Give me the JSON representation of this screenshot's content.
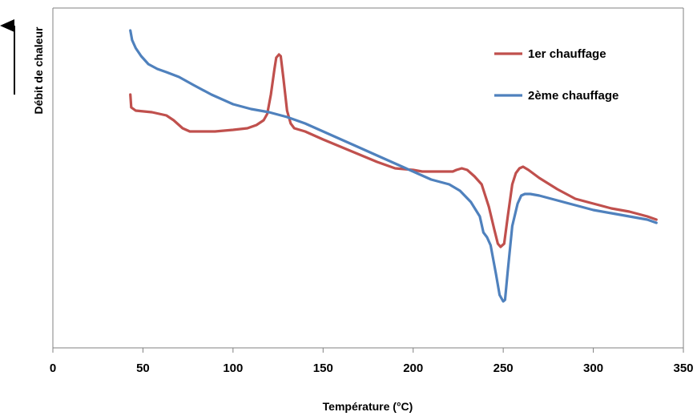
{
  "chart_data": {
    "type": "line",
    "title": "",
    "xlabel": "Température (°C)",
    "ylabel": "Débit de chaleur",
    "xlim": [
      0,
      350
    ],
    "ylim": [
      0,
      1
    ],
    "xticks": [
      "0",
      "50",
      "100",
      "150",
      "200",
      "250",
      "300",
      "350"
    ],
    "y_tick_labels_shown": false,
    "grid": false,
    "legend_position": "top-right",
    "y_arrow": "up",
    "series": [
      {
        "name": "1er chauffage",
        "color": "#c0504d",
        "points": [
          [
            43,
            0.8
          ],
          [
            43.5,
            0.76
          ],
          [
            46,
            0.75
          ],
          [
            55,
            0.745
          ],
          [
            63,
            0.735
          ],
          [
            67,
            0.72
          ],
          [
            72,
            0.695
          ],
          [
            76,
            0.685
          ],
          [
            80,
            0.685
          ],
          [
            90,
            0.685
          ],
          [
            100,
            0.69
          ],
          [
            108,
            0.695
          ],
          [
            113,
            0.705
          ],
          [
            117,
            0.72
          ],
          [
            119,
            0.74
          ],
          [
            121,
            0.8
          ],
          [
            123,
            0.88
          ],
          [
            124,
            0.915
          ],
          [
            125.5,
            0.925
          ],
          [
            126.5,
            0.92
          ],
          [
            128,
            0.85
          ],
          [
            130,
            0.75
          ],
          [
            132,
            0.71
          ],
          [
            134,
            0.695
          ],
          [
            140,
            0.685
          ],
          [
            150,
            0.66
          ],
          [
            165,
            0.625
          ],
          [
            180,
            0.59
          ],
          [
            190,
            0.57
          ],
          [
            200,
            0.565
          ],
          [
            205,
            0.56
          ],
          [
            210,
            0.56
          ],
          [
            218,
            0.56
          ],
          [
            222,
            0.56
          ],
          [
            224,
            0.565
          ],
          [
            227,
            0.57
          ],
          [
            230,
            0.565
          ],
          [
            234,
            0.545
          ],
          [
            238,
            0.52
          ],
          [
            242,
            0.45
          ],
          [
            245,
            0.38
          ],
          [
            247,
            0.335
          ],
          [
            248.5,
            0.325
          ],
          [
            250.5,
            0.335
          ],
          [
            252.5,
            0.42
          ],
          [
            255,
            0.52
          ],
          [
            257,
            0.555
          ],
          [
            259,
            0.57
          ],
          [
            261,
            0.575
          ],
          [
            264,
            0.565
          ],
          [
            270,
            0.54
          ],
          [
            280,
            0.505
          ],
          [
            290,
            0.475
          ],
          [
            300,
            0.46
          ],
          [
            310,
            0.445
          ],
          [
            320,
            0.435
          ],
          [
            330,
            0.42
          ],
          [
            335,
            0.41
          ]
        ]
      },
      {
        "name": "2ème chauffage",
        "color": "#4f81bd",
        "points": [
          [
            43,
            1.0
          ],
          [
            44,
            0.97
          ],
          [
            46,
            0.945
          ],
          [
            49,
            0.92
          ],
          [
            53,
            0.895
          ],
          [
            58,
            0.88
          ],
          [
            63,
            0.87
          ],
          [
            70,
            0.855
          ],
          [
            78,
            0.83
          ],
          [
            88,
            0.8
          ],
          [
            100,
            0.77
          ],
          [
            110,
            0.755
          ],
          [
            120,
            0.745
          ],
          [
            130,
            0.73
          ],
          [
            140,
            0.71
          ],
          [
            150,
            0.685
          ],
          [
            160,
            0.66
          ],
          [
            170,
            0.635
          ],
          [
            180,
            0.61
          ],
          [
            190,
            0.585
          ],
          [
            200,
            0.56
          ],
          [
            210,
            0.535
          ],
          [
            220,
            0.52
          ],
          [
            226,
            0.5
          ],
          [
            232,
            0.465
          ],
          [
            237,
            0.42
          ],
          [
            239,
            0.37
          ],
          [
            241,
            0.355
          ],
          [
            243,
            0.33
          ],
          [
            246,
            0.24
          ],
          [
            248,
            0.175
          ],
          [
            250,
            0.155
          ],
          [
            251,
            0.16
          ],
          [
            252.5,
            0.25
          ],
          [
            255,
            0.39
          ],
          [
            258,
            0.46
          ],
          [
            260,
            0.485
          ],
          [
            262,
            0.49
          ],
          [
            265,
            0.49
          ],
          [
            270,
            0.485
          ],
          [
            280,
            0.47
          ],
          [
            290,
            0.455
          ],
          [
            300,
            0.44
          ],
          [
            310,
            0.43
          ],
          [
            320,
            0.42
          ],
          [
            330,
            0.41
          ],
          [
            335,
            0.4
          ]
        ]
      }
    ]
  }
}
